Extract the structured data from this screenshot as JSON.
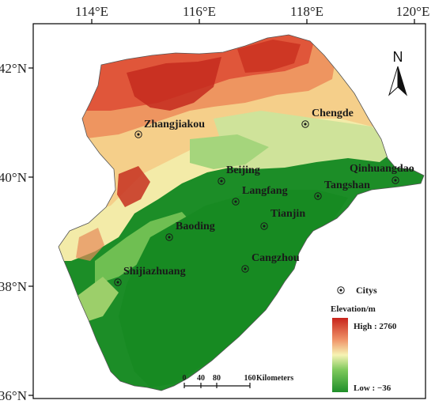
{
  "map": {
    "longitude_labels": [
      "114°E",
      "116°E",
      "118°E",
      "120°E"
    ],
    "latitude_labels": [
      "42°N",
      "40°N",
      "38°N",
      "36°N"
    ],
    "north_arrow_label": "N",
    "cities": [
      {
        "name": "Zhangjiakou"
      },
      {
        "name": "Chengde"
      },
      {
        "name": "Beijing"
      },
      {
        "name": "Qinhuangdao"
      },
      {
        "name": "Langfang"
      },
      {
        "name": "Tangshan"
      },
      {
        "name": "Tianjin"
      },
      {
        "name": "Baoding"
      },
      {
        "name": "Cangzhou"
      },
      {
        "name": "Shijiazhuang"
      }
    ],
    "legend": {
      "city_symbol_label": "Citys",
      "elevation_title": "Elevation/m",
      "high_label": "High : 2760",
      "low_label": "Low : −36",
      "colors": {
        "high": "#c8241c",
        "mid": "#f6f3b4",
        "low": "#1f8f2a"
      }
    },
    "scale_bar": {
      "ticks": [
        "0",
        "40",
        "80",
        "160"
      ],
      "unit": "Kilometers"
    }
  }
}
